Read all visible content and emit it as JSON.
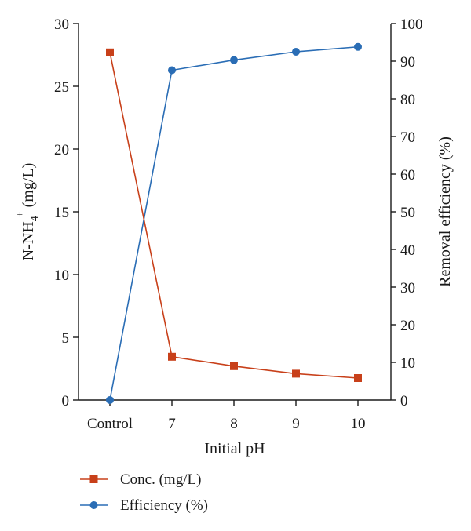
{
  "chart_data": {
    "type": "line",
    "categories": [
      "Control",
      "7",
      "8",
      "9",
      "10"
    ],
    "xlabel": "Initial pH",
    "ylabel": "N-NH4+ (mg/L)",
    "ylabel_parts": {
      "base": "N-NH",
      "sub": "4",
      "sup": "+",
      "unit": " (mg/L)"
    },
    "y2label": "Removal efficiency (%)",
    "ylim": [
      0,
      30
    ],
    "y2lim": [
      0,
      100
    ],
    "yticks": [
      "0",
      "5",
      "10",
      "15",
      "20",
      "25",
      "30"
    ],
    "y2ticks": [
      "0",
      "10",
      "20",
      "30",
      "40",
      "50",
      "60",
      "70",
      "80",
      "90",
      "100"
    ],
    "grid": false,
    "legend_position": "bottom-left",
    "series": [
      {
        "name": "Conc. (mg/L)",
        "axis": "left",
        "marker": "square",
        "color": "#c8401a",
        "values": [
          27.7,
          3.45,
          2.7,
          2.1,
          1.75
        ]
      },
      {
        "name": "Efficiency (%)",
        "axis": "right",
        "marker": "circle",
        "color": "#2a6db5",
        "values": [
          0,
          87.6,
          90.3,
          92.5,
          93.8
        ]
      }
    ]
  }
}
